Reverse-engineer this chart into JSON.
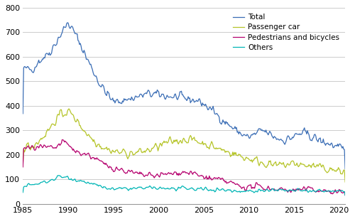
{
  "xlim": [
    1985,
    2020.67
  ],
  "ylim": [
    0,
    800
  ],
  "yticks": [
    0,
    100,
    200,
    300,
    400,
    500,
    600,
    700,
    800
  ],
  "xticks": [
    1985,
    1990,
    1995,
    2000,
    2005,
    2010,
    2015,
    2020
  ],
  "colors": {
    "Total": "#3a6db5",
    "Passenger car": "#b5c428",
    "Pedestrians and bicycles": "#b5006e",
    "Others": "#00b5b5"
  },
  "legend_labels": [
    "Total",
    "Passenger car",
    "Pedestrians and bicycles",
    "Others"
  ],
  "background_color": "#ffffff",
  "grid_color": "#cccccc"
}
